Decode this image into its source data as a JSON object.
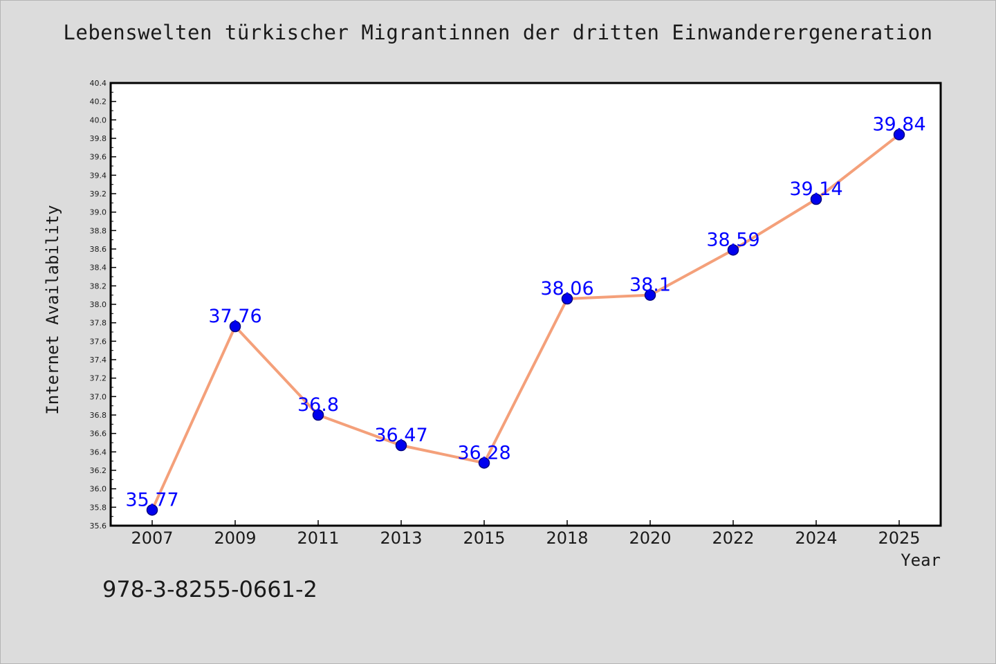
{
  "chart_data": {
    "type": "line",
    "title": "Lebenswelten türkischer Migrantinnen der dritten Einwanderergeneration",
    "xlabel": "Year",
    "ylabel": "Internet Availability",
    "categories": [
      "2007",
      "2009",
      "2011",
      "2013",
      "2015",
      "2018",
      "2020",
      "2022",
      "2024",
      "2025"
    ],
    "values": [
      35.77,
      37.76,
      36.8,
      36.47,
      36.28,
      38.06,
      38.1,
      38.59,
      39.14,
      39.84
    ],
    "data_labels": [
      "35.77",
      "37.76",
      "36.8",
      "36.47",
      "36.28",
      "38.06",
      "38.1",
      "38.59",
      "39.14",
      "39.84"
    ],
    "ylim": [
      35.6,
      40.4
    ],
    "yticks": [
      "35.6",
      "35.8",
      "36.0",
      "36.2",
      "36.4",
      "36.6",
      "36.8",
      "37.0",
      "37.2",
      "37.4",
      "37.6",
      "37.8",
      "38.0",
      "38.2",
      "38.4",
      "38.6",
      "38.8",
      "39.0",
      "39.2",
      "39.4",
      "39.6",
      "39.8",
      "40.0",
      "40.2",
      "40.4"
    ],
    "grid": false,
    "legend": "none",
    "colors": {
      "line": "#f4a07a",
      "marker": "#0000ee",
      "marker_edge": "#000080",
      "data_label": "#0000ff",
      "background": "#dcdcdc",
      "plot_area": "#ffffff"
    }
  },
  "footer": {
    "code": "978-3-8255-0661-2"
  }
}
